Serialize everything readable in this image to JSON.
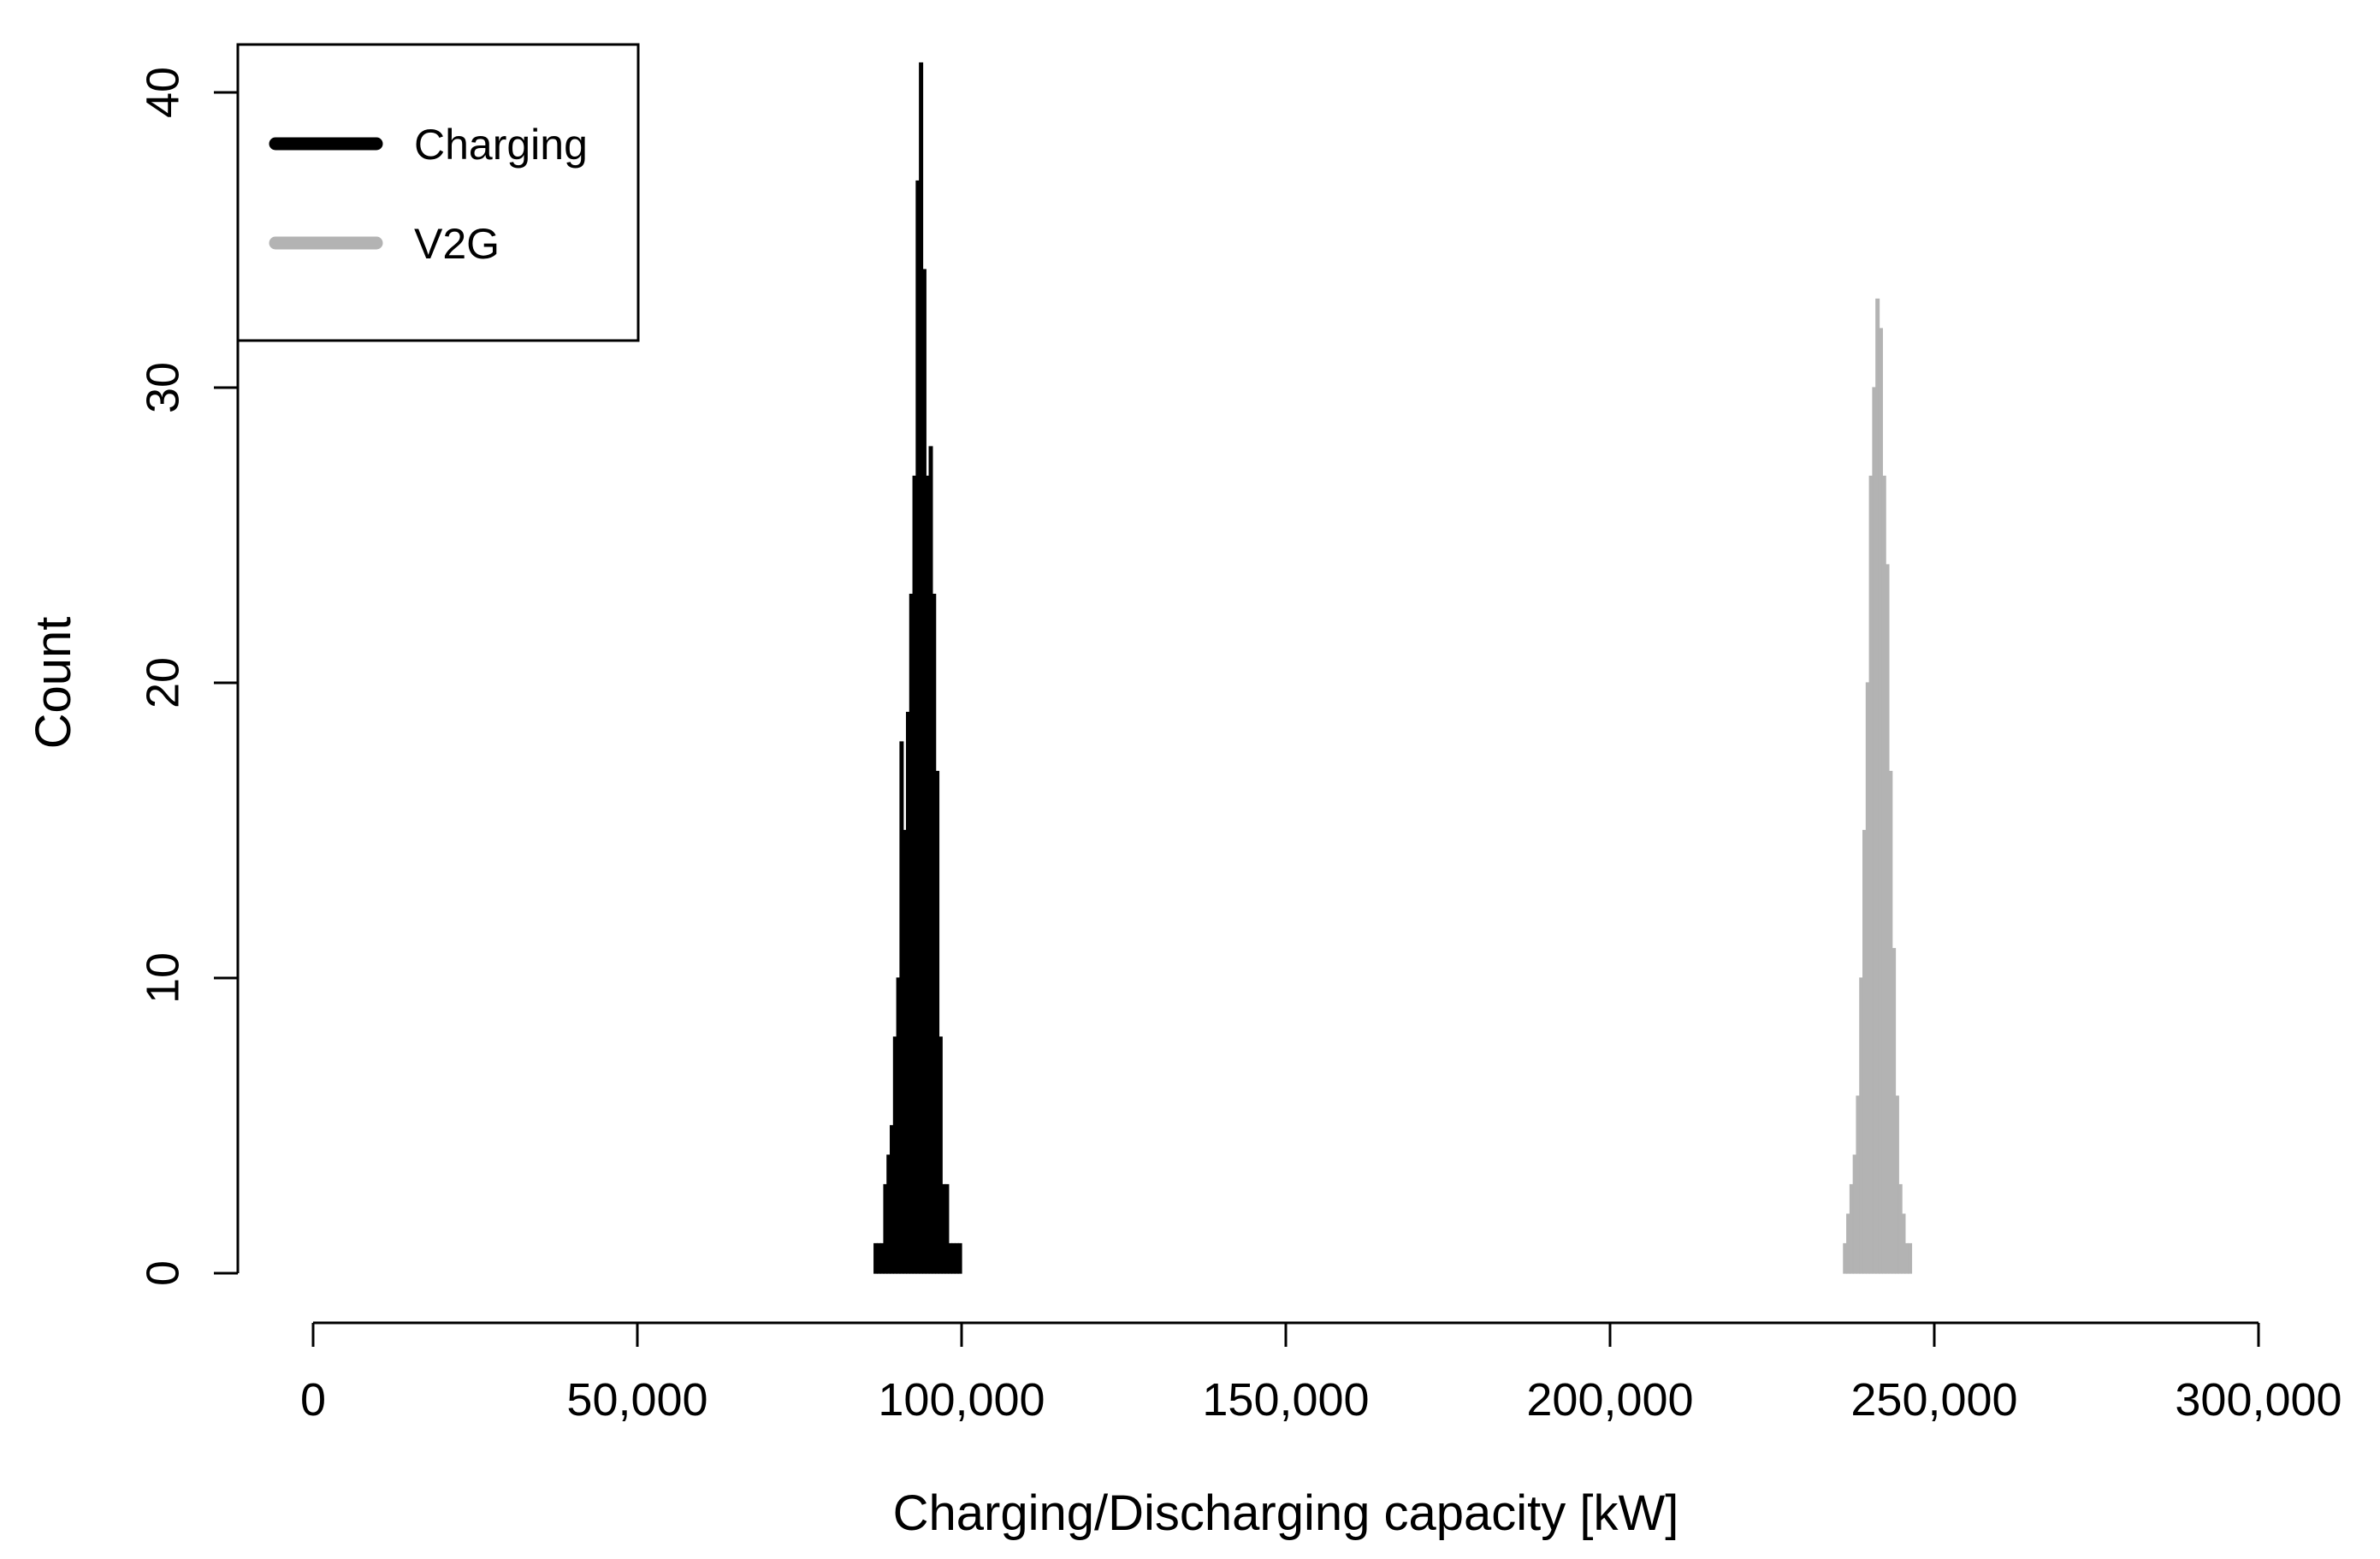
{
  "chart_data": {
    "type": "bar",
    "subtype": "histogram",
    "title": "",
    "xlabel": "Charging/Discharging capacity [kW]",
    "ylabel": "Count",
    "xlim": [
      0,
      300000
    ],
    "ylim": [
      0,
      40
    ],
    "x_ticks": [
      0,
      50000,
      100000,
      150000,
      200000,
      250000,
      300000
    ],
    "x_tick_labels": [
      "0",
      "50,000",
      "100,000",
      "150,000",
      "200,000",
      "250,000",
      "300,000"
    ],
    "y_ticks": [
      0,
      10,
      20,
      30,
      40
    ],
    "y_tick_labels": [
      "0",
      "10",
      "20",
      "30",
      "40"
    ],
    "grid": false,
    "legend": {
      "position": "top-left",
      "entries": [
        {
          "label": "Charging",
          "color": "#000000"
        },
        {
          "label": "V2G",
          "color": "#b3b3b3"
        }
      ]
    },
    "series": [
      {
        "name": "Charging",
        "color": "#000000",
        "bin_width": 500,
        "bins": [
          [
            86750,
            1
          ],
          [
            87250,
            1
          ],
          [
            87750,
            1
          ],
          [
            88250,
            3
          ],
          [
            88750,
            4
          ],
          [
            89250,
            5
          ],
          [
            89750,
            8
          ],
          [
            90250,
            10
          ],
          [
            90750,
            18
          ],
          [
            91250,
            15
          ],
          [
            91750,
            19
          ],
          [
            92250,
            23
          ],
          [
            92750,
            27
          ],
          [
            93250,
            37
          ],
          [
            93750,
            41
          ],
          [
            94250,
            34
          ],
          [
            94750,
            27
          ],
          [
            95250,
            28
          ],
          [
            95750,
            23
          ],
          [
            96250,
            17
          ],
          [
            96750,
            8
          ],
          [
            97250,
            3
          ],
          [
            97750,
            3
          ],
          [
            98250,
            1
          ],
          [
            98750,
            1
          ],
          [
            99250,
            1
          ],
          [
            99750,
            1
          ]
        ]
      },
      {
        "name": "V2G",
        "color": "#b3b3b3",
        "bin_width": 500,
        "bins": [
          [
            236250,
            1
          ],
          [
            236750,
            2
          ],
          [
            237250,
            3
          ],
          [
            237750,
            4
          ],
          [
            238250,
            6
          ],
          [
            238750,
            10
          ],
          [
            239250,
            15
          ],
          [
            239750,
            20
          ],
          [
            240250,
            27
          ],
          [
            240750,
            30
          ],
          [
            241250,
            33
          ],
          [
            241750,
            32
          ],
          [
            242250,
            27
          ],
          [
            242750,
            24
          ],
          [
            243250,
            17
          ],
          [
            243750,
            11
          ],
          [
            244250,
            6
          ],
          [
            244750,
            3
          ],
          [
            245250,
            2
          ],
          [
            245750,
            1
          ],
          [
            246250,
            1
          ]
        ]
      }
    ]
  }
}
